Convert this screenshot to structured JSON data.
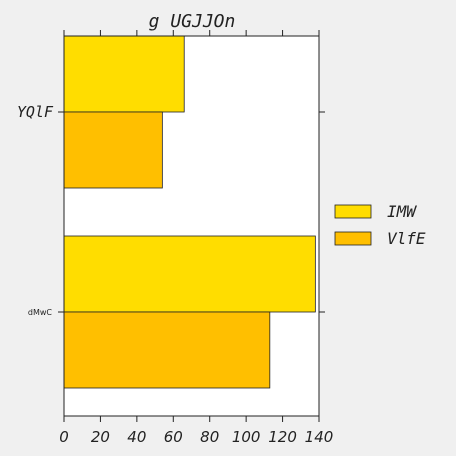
{
  "chart_data": {
    "type": "bar",
    "orientation": "horizontal",
    "title": "g UGJJOn",
    "categories": [
      "YQlF",
      "dMwC"
    ],
    "series": [
      {
        "name": "IMW",
        "values": [
          66,
          138
        ],
        "color": "#FFDD00"
      },
      {
        "name": "VlfE",
        "values": [
          54,
          113
        ],
        "color": "#FFBF00"
      }
    ],
    "xlim": [
      0,
      140
    ],
    "xticks": [
      0,
      20,
      40,
      60,
      80,
      100,
      120,
      140
    ],
    "xlabel": "",
    "ylabel": "",
    "grid": false,
    "legend_position": "right"
  }
}
